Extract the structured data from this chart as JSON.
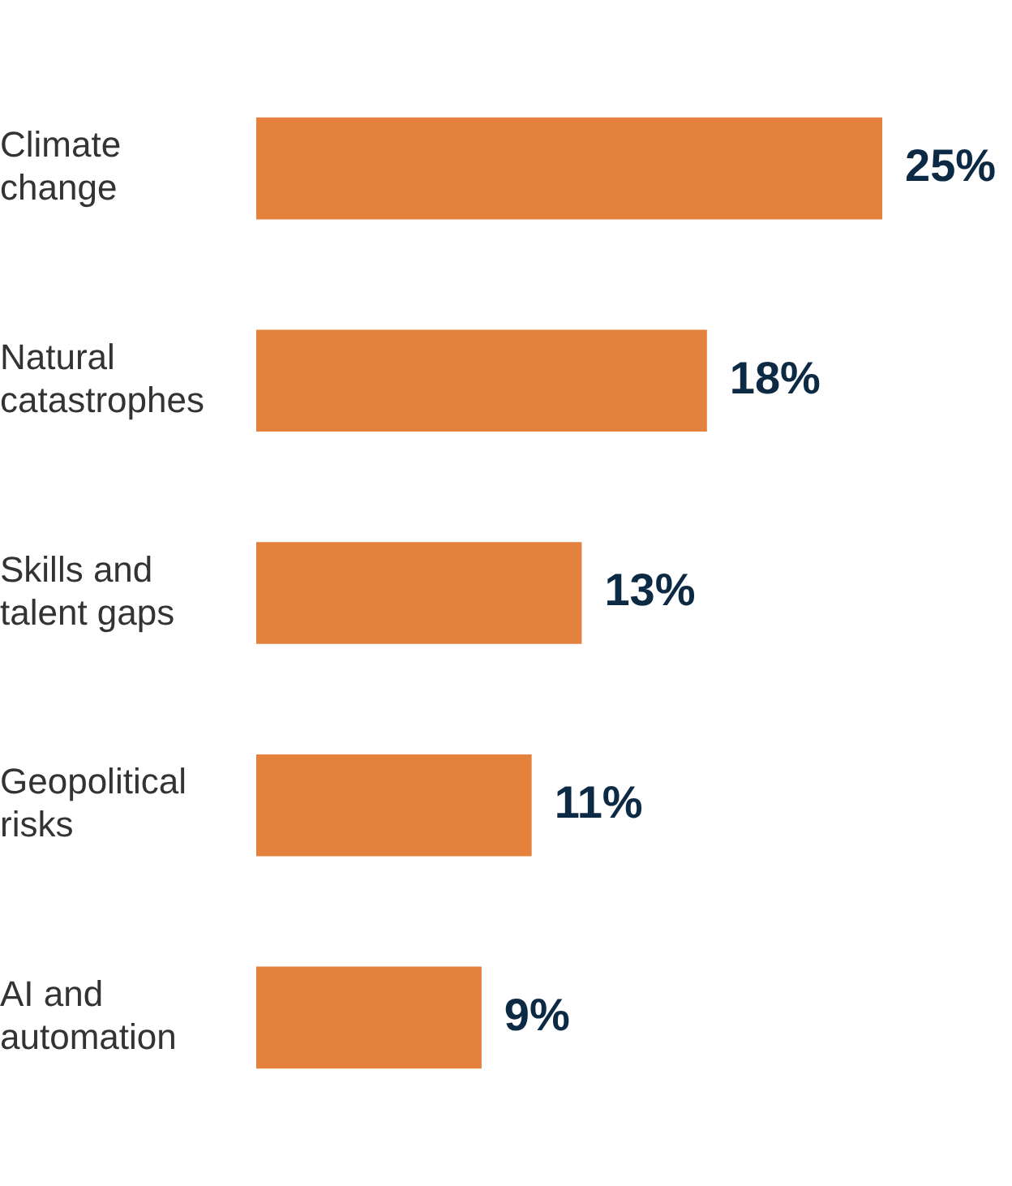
{
  "chart_data": {
    "type": "bar",
    "orientation": "horizontal",
    "categories": [
      "Climate change",
      "Natural catastrophes",
      "Skills and talent gaps",
      "Geopolitical risks",
      "AI and automation"
    ],
    "values": [
      25,
      18,
      13,
      11,
      9
    ],
    "color": "#e4813c",
    "data_labels": true,
    "value_labels": [
      "25%",
      "18%",
      "13%",
      "11%",
      "9%"
    ],
    "tick_labels": "y",
    "grid": false,
    "legend": false
  }
}
